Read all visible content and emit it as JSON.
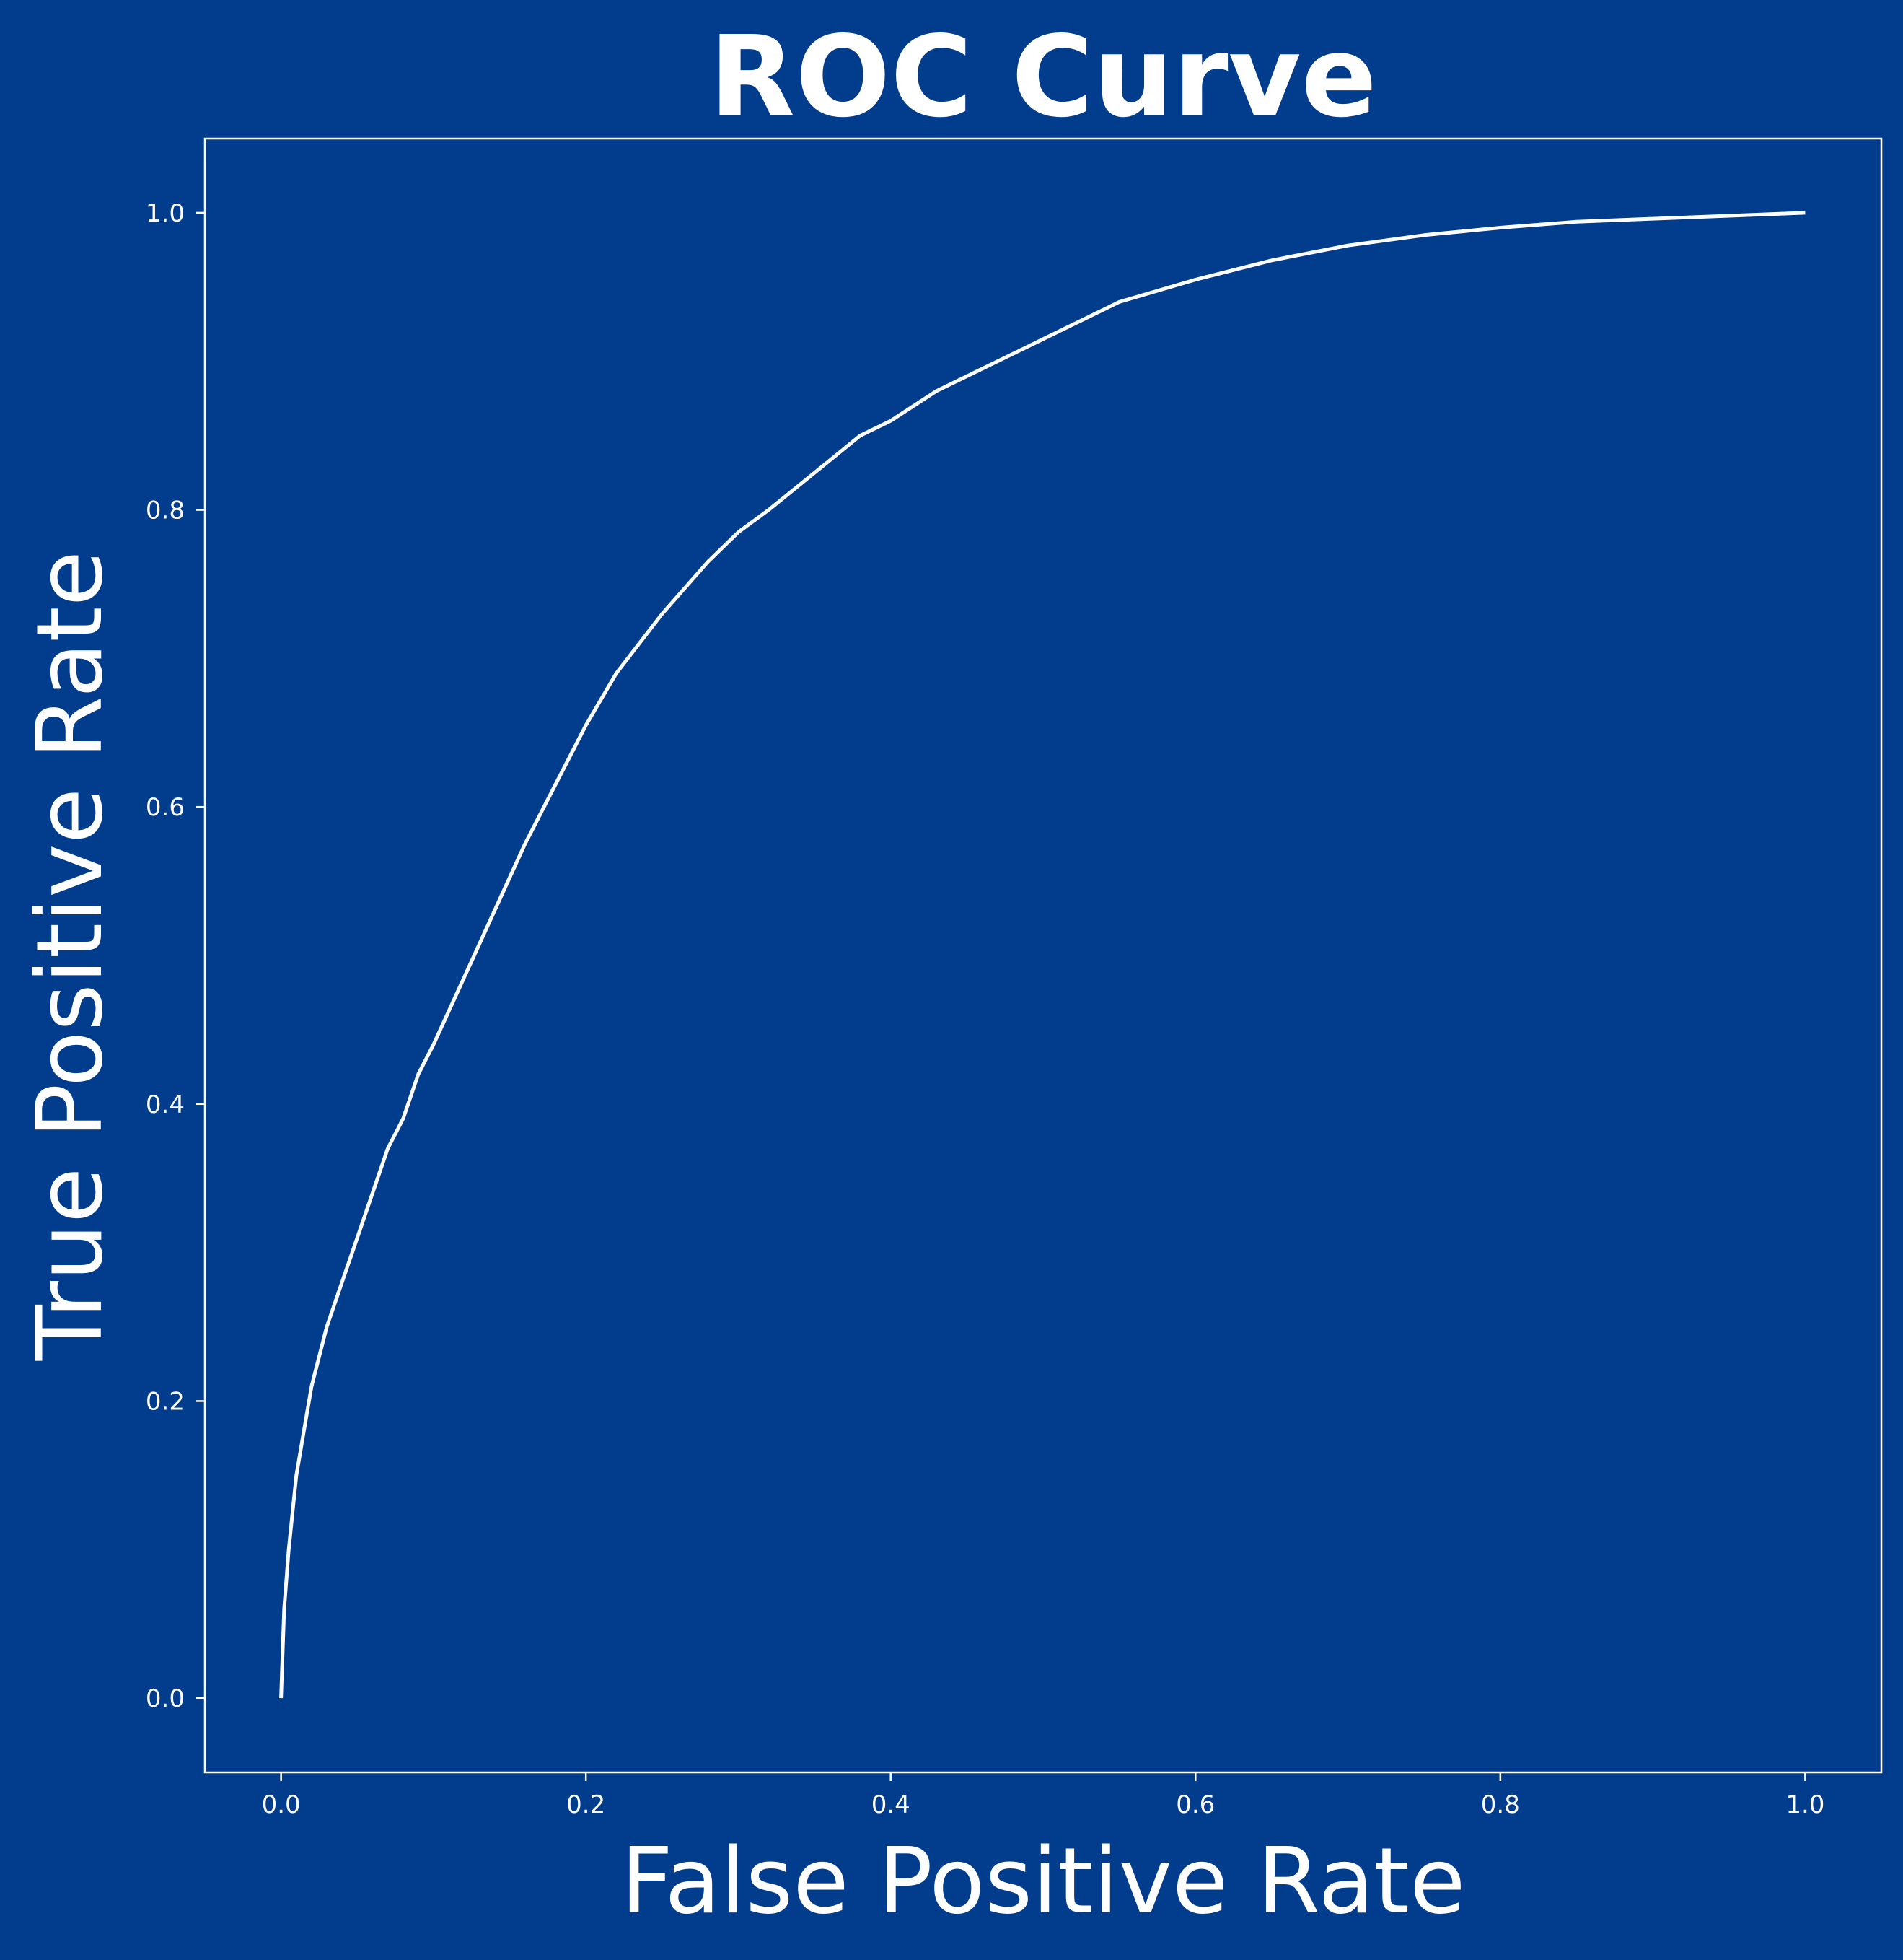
{
  "colors": {
    "background": "#023d8d",
    "foreground": "#ffffff",
    "curve": "#ffffff"
  },
  "chart_data": {
    "type": "line",
    "title": "ROC Curve",
    "xlabel": "False Positive Rate",
    "ylabel": "True Positive Rate",
    "xlim": [
      -0.05,
      1.05
    ],
    "ylim": [
      -0.05,
      1.05
    ],
    "xticks": [
      "0.0",
      "0.2",
      "0.4",
      "0.6",
      "0.8",
      "1.0"
    ],
    "yticks": [
      "0.0",
      "0.2",
      "0.4",
      "0.6",
      "0.8",
      "1.0"
    ],
    "grid": false,
    "legend": "none",
    "series": [
      {
        "x": [
          0.0,
          0.002,
          0.005,
          0.01,
          0.015,
          0.02,
          0.03,
          0.04,
          0.05,
          0.06,
          0.07,
          0.08,
          0.09,
          0.1,
          0.12,
          0.14,
          0.16,
          0.18,
          0.2,
          0.22,
          0.25,
          0.28,
          0.3,
          0.32,
          0.35,
          0.38,
          0.4,
          0.43,
          0.46,
          0.5,
          0.55,
          0.6,
          0.65,
          0.7,
          0.75,
          0.8,
          0.85,
          0.9,
          0.95,
          1.0
        ],
        "y": [
          0.0,
          0.06,
          0.1,
          0.15,
          0.18,
          0.21,
          0.25,
          0.28,
          0.31,
          0.34,
          0.37,
          0.39,
          0.42,
          0.44,
          0.485,
          0.53,
          0.575,
          0.615,
          0.655,
          0.69,
          0.73,
          0.765,
          0.785,
          0.8,
          0.825,
          0.85,
          0.86,
          0.88,
          0.895,
          0.915,
          0.94,
          0.955,
          0.968,
          0.978,
          0.985,
          0.99,
          0.994,
          0.996,
          0.998,
          1.0
        ]
      }
    ]
  }
}
